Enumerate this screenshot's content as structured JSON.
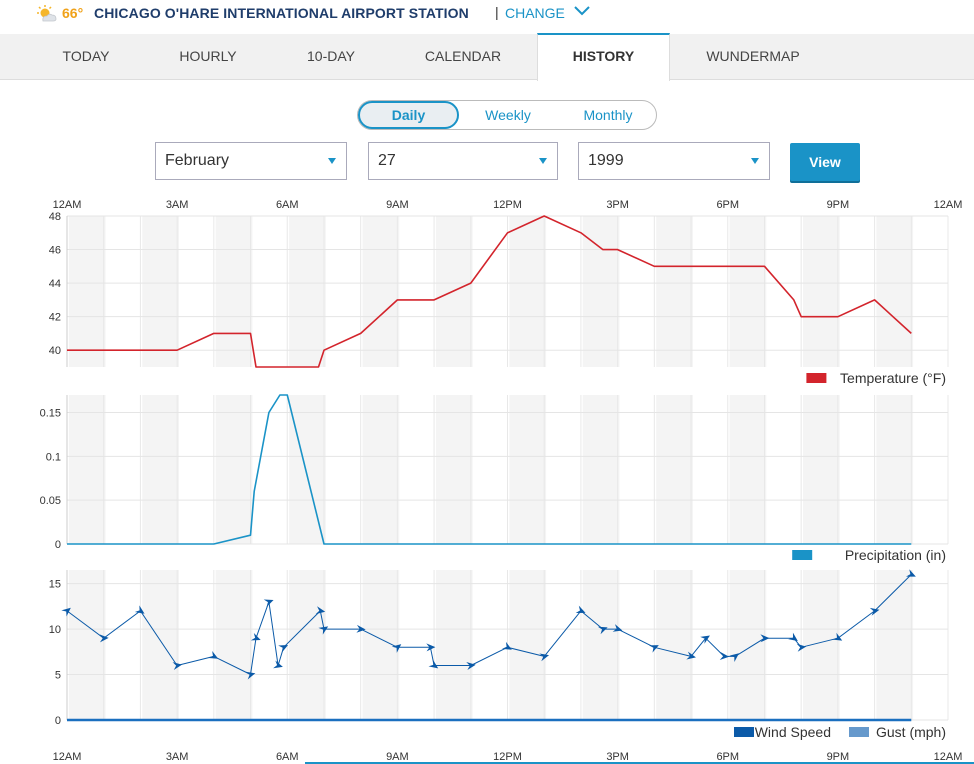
{
  "header": {
    "current_temp": "66°",
    "station_name": "CHICAGO O'HARE INTERNATIONAL AIRPORT STATION",
    "separator": "|",
    "change_label": "CHANGE",
    "weather_icon": "partly-sunny-icon",
    "accent_color": "#f0a21a"
  },
  "tabs": [
    {
      "label": "TODAY"
    },
    {
      "label": "HOURLY"
    },
    {
      "label": "10-DAY"
    },
    {
      "label": "CALENDAR"
    },
    {
      "label": "HISTORY",
      "active": true
    },
    {
      "label": "WUNDERMAP"
    }
  ],
  "period": {
    "options": [
      "Daily",
      "Weekly",
      "Monthly"
    ],
    "selected": "Daily"
  },
  "date_select": {
    "month": "February",
    "day": "27",
    "year": "1999",
    "view_label": "View"
  },
  "time_labels": [
    "12AM",
    "3AM",
    "6AM",
    "9AM",
    "12PM",
    "3PM",
    "6PM",
    "9PM",
    "12AM"
  ],
  "chart_data": [
    {
      "type": "line",
      "legend": [
        "Temperature (°F)"
      ],
      "colors": [
        "#d3242c"
      ],
      "x_range_hours": [
        0,
        24
      ],
      "ylim": [
        39,
        48
      ],
      "yticks": [
        "40",
        "42",
        "44",
        "46",
        "48"
      ],
      "series": [
        {
          "name": "Temperature (°F)",
          "x": [
            0,
            3,
            4,
            5,
            5.15,
            6,
            6.85,
            7,
            8,
            9,
            10,
            11,
            12,
            13,
            14,
            14.6,
            15,
            16,
            17,
            18,
            19,
            19.8,
            20,
            21,
            22,
            23
          ],
          "values": [
            40,
            40,
            41,
            41,
            39,
            39,
            39,
            40,
            41,
            43,
            43,
            44,
            47,
            48,
            47,
            46,
            46,
            45,
            45,
            45,
            45,
            43,
            42,
            42,
            43,
            41
          ]
        }
      ]
    },
    {
      "type": "line",
      "legend": [
        "Precipitation (in)"
      ],
      "colors": [
        "#1a93c7"
      ],
      "x_range_hours": [
        0,
        24
      ],
      "ylim": [
        0,
        0.17
      ],
      "yticks": [
        "0",
        "0.05",
        "0.1",
        "0.15"
      ],
      "series": [
        {
          "name": "Precipitation (in)",
          "x": [
            0,
            4,
            5,
            5.1,
            5.5,
            5.8,
            6,
            7,
            23
          ],
          "values": [
            0,
            0,
            0.01,
            0.06,
            0.15,
            0.17,
            0.17,
            0,
            0
          ]
        }
      ]
    },
    {
      "type": "line",
      "legend": [
        "Wind Speed",
        "Gust (mph)"
      ],
      "colors": [
        "#0b5aa8",
        "#6699cc"
      ],
      "x_range_hours": [
        0,
        24
      ],
      "ylim": [
        0,
        16.5
      ],
      "yticks": [
        "0",
        "5",
        "10",
        "15"
      ],
      "series": [
        {
          "name": "Wind Speed",
          "x": [
            0,
            1,
            2,
            3,
            4,
            5,
            5.15,
            5.5,
            5.75,
            5.9,
            6.9,
            7,
            8,
            9,
            9.9,
            10,
            11,
            12,
            13,
            14,
            14.6,
            15,
            16,
            17,
            17.4,
            17.9,
            18.2,
            19,
            19.8,
            20,
            21,
            22,
            23
          ],
          "values": [
            12,
            9,
            12,
            6,
            7,
            5,
            9,
            13,
            6,
            8,
            12,
            10,
            10,
            8,
            8,
            6,
            6,
            8,
            7,
            12,
            10,
            10,
            8,
            7,
            9,
            7,
            7,
            9,
            9,
            8,
            9,
            12,
            16
          ]
        },
        {
          "name": "Gust (mph)",
          "x": [
            0,
            23
          ],
          "values": [
            0,
            0
          ]
        }
      ]
    }
  ]
}
